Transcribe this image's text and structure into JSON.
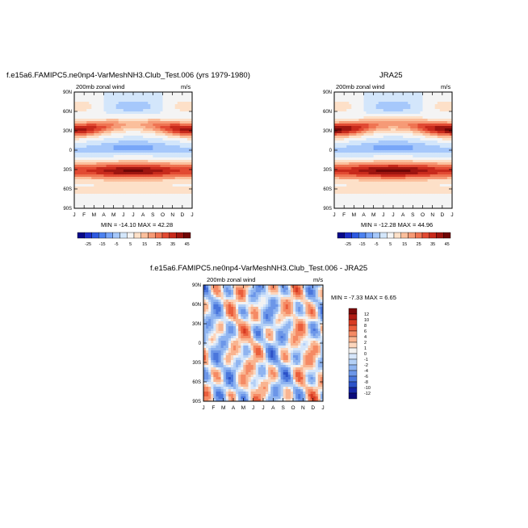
{
  "panels": [
    {
      "title": "f.e15a6.FAMIPC5.ne0np4-VarMeshNH3.Club_Test.006 (yrs 1979-1980)",
      "variable": "200mb zonal wind",
      "units": "m/s",
      "stats": "MIN = -14.10 MAX = 42.28"
    },
    {
      "title": "JRA25",
      "variable": "200mb zonal wind",
      "units": "m/s",
      "stats": "MIN = -12.28 MAX = 44.96"
    },
    {
      "title": "f.e15a6.FAMIPC5.ne0np4-VarMeshNH3.Club_Test.006 - JRA25",
      "variable": "200mb zonal wind",
      "units": "m/s",
      "stats": "MIN = -7.33 MAX = 6.65"
    }
  ],
  "chart_data": [
    {
      "type": "heatmap",
      "title": "f.e15a6.FAMIPC5.ne0np4-VarMeshNH3.Club_Test.006 (yrs 1979-1980)",
      "subtitle": "200mb zonal wind",
      "x_ticks": [
        "J",
        "F",
        "M",
        "A",
        "M",
        "J",
        "J",
        "A",
        "S",
        "O",
        "N",
        "D",
        "J"
      ],
      "y_ticks": [
        "90N",
        "60N",
        "30N",
        "0",
        "30S",
        "60S",
        "90S"
      ],
      "colorbar_labels": [
        "-25",
        "-15",
        "-5",
        "5",
        "15",
        "25",
        "35",
        "45"
      ],
      "colors": [
        "#08088a",
        "#1c2ec8",
        "#2d59e0",
        "#4c82f0",
        "#78a6f8",
        "#a6c8fb",
        "#d3e6fb",
        "#f4f4f4",
        "#fde0c8",
        "#fbbf9c",
        "#f69a76",
        "#ef7452",
        "#e24a33",
        "#c82a1c",
        "#9e1510",
        "#700606"
      ],
      "levels": [
        -30,
        -25,
        -20,
        -15,
        -10,
        -5,
        0,
        5,
        10,
        15,
        20,
        25,
        30,
        35,
        40,
        45
      ]
    },
    {
      "type": "heatmap",
      "title": "JRA25",
      "subtitle": "200mb zonal wind",
      "x_ticks": [
        "J",
        "F",
        "M",
        "A",
        "M",
        "J",
        "J",
        "A",
        "S",
        "O",
        "N",
        "D",
        "J"
      ],
      "y_ticks": [
        "90N",
        "60N",
        "30N",
        "0",
        "30S",
        "60S",
        "90S"
      ],
      "colorbar_labels": [
        "-25",
        "-15",
        "-5",
        "5",
        "15",
        "25",
        "35",
        "45"
      ]
    },
    {
      "type": "heatmap",
      "title": "f.e15a6.FAMIPC5.ne0np4-VarMeshNH3.Club_Test.006 - JRA25",
      "subtitle": "200mb zonal wind",
      "x_ticks": [
        "J",
        "F",
        "M",
        "A",
        "M",
        "J",
        "J",
        "A",
        "S",
        "O",
        "N",
        "D",
        "J"
      ],
      "y_ticks": [
        "90N",
        "60N",
        "30N",
        "0",
        "30S",
        "60S",
        "90S"
      ],
      "colorbar_labels": [
        "12",
        "10",
        "8",
        "6",
        "4",
        "2",
        "1",
        "0",
        "-1",
        "-2",
        "-4",
        "-6",
        "-8",
        "-10",
        "-12"
      ],
      "colors": [
        "#7a0a0a",
        "#b01c14",
        "#d63a22",
        "#ea5e3c",
        "#f58a64",
        "#f9b490",
        "#fcd6bd",
        "#f2f2f2",
        "#d6e6fa",
        "#b4d0f6",
        "#8fb4f0",
        "#6c96e8",
        "#4a76dc",
        "#2c52c8",
        "#1626a6",
        "#0a0a7a"
      ],
      "levels": [
        -12,
        -10,
        -8,
        -6,
        -4,
        -2,
        -1,
        0,
        1,
        2,
        4,
        6,
        8,
        10,
        12
      ]
    }
  ]
}
